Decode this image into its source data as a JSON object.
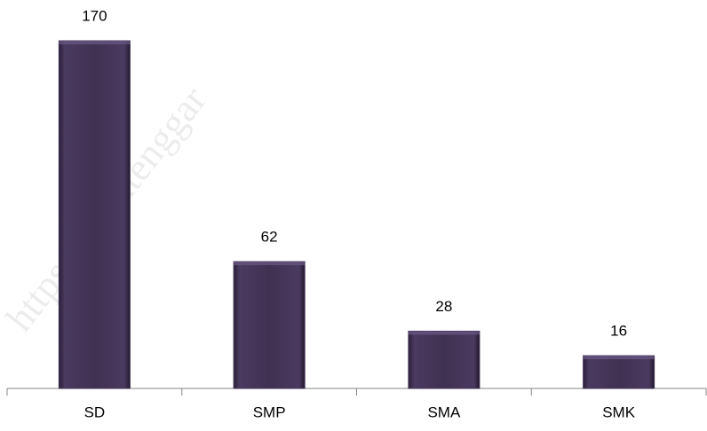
{
  "chart_data": {
    "type": "bar",
    "categories": [
      "SD",
      "SMP",
      "SMA",
      "SMK"
    ],
    "values": [
      170,
      62,
      28,
      16
    ],
    "color": "#3f3151",
    "watermark": "https://acehtenggar"
  }
}
